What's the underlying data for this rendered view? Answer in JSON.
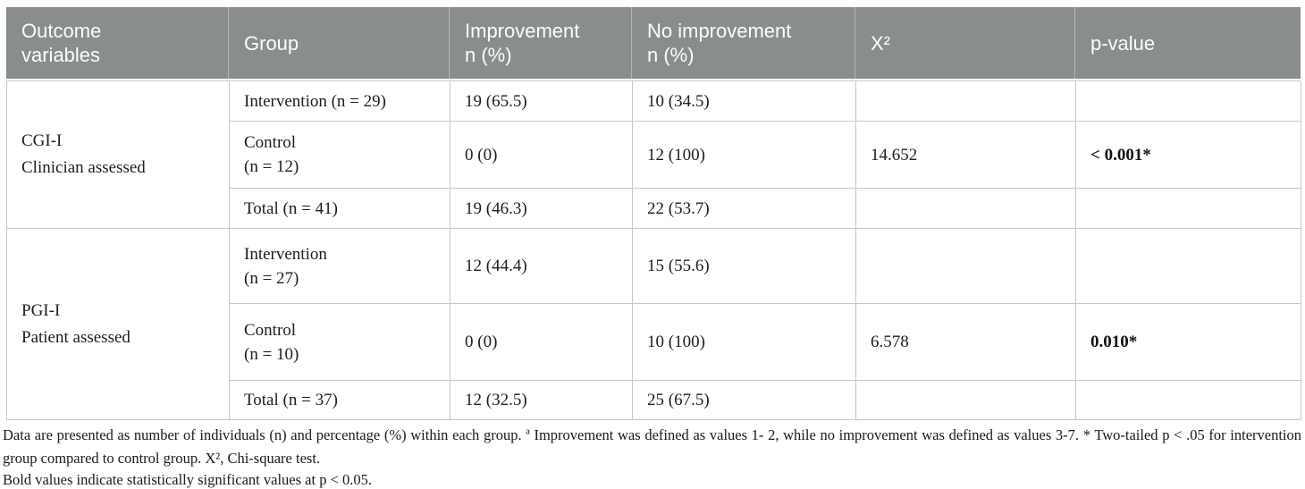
{
  "table": {
    "header": {
      "outcome_variables": [
        "Outcome",
        "variables"
      ],
      "group": "Group",
      "improvement": [
        "Improvement",
        "n (%)"
      ],
      "no_improvement": [
        "No improvement",
        "n (%)"
      ],
      "chi_square": "X²",
      "p_value": "p-value"
    },
    "sections": [
      {
        "outcome": [
          "CGI-I",
          "Clinician assessed"
        ],
        "rows": [
          {
            "group": [
              "Intervention (n = 29)"
            ],
            "improvement": "19 (65.5)",
            "no_improvement": "10 (34.5)",
            "chi_square": "",
            "p_value": ""
          },
          {
            "group": [
              "Control",
              "(n = 12)"
            ],
            "improvement": "0 (0)",
            "no_improvement": "12 (100)",
            "chi_square": "14.652",
            "p_value": "< 0.001*"
          },
          {
            "group": [
              "Total (n = 41)"
            ],
            "improvement": "19 (46.3)",
            "no_improvement": "22 (53.7)",
            "chi_square": "",
            "p_value": ""
          }
        ]
      },
      {
        "outcome": [
          "PGI-I",
          "Patient assessed"
        ],
        "rows": [
          {
            "group": [
              "Intervention",
              "(n = 27)"
            ],
            "improvement": "12 (44.4)",
            "no_improvement": "15 (55.6)",
            "chi_square": "",
            "p_value": ""
          },
          {
            "group": [
              "Control",
              "(n = 10)"
            ],
            "improvement": "0 (0)",
            "no_improvement": "10 (100)",
            "chi_square": "6.578",
            "p_value": "0.010*"
          },
          {
            "group": [
              "Total (n = 37)"
            ],
            "improvement": "12 (32.5)",
            "no_improvement": "25 (67.5)",
            "chi_square": "",
            "p_value": ""
          }
        ]
      }
    ]
  },
  "footnote": {
    "part1": "Data are presented as number of individuals (n) and percentage (%) within each group. ",
    "sup_a": "a",
    "part2": " Improvement was defined as values 1- 2, while no improvement was defined as values 3-7. * Two-tailed p < .05 for intervention group compared to control group. X², Chi-square test.",
    "bold_note": "Bold values indicate statistically significant values at p < 0.05."
  },
  "colors": {
    "header_bg": "#8a8d8d",
    "header_text": "#fdfdfd",
    "border": "#c7c9c9",
    "body_text": "#1d1d1d"
  }
}
